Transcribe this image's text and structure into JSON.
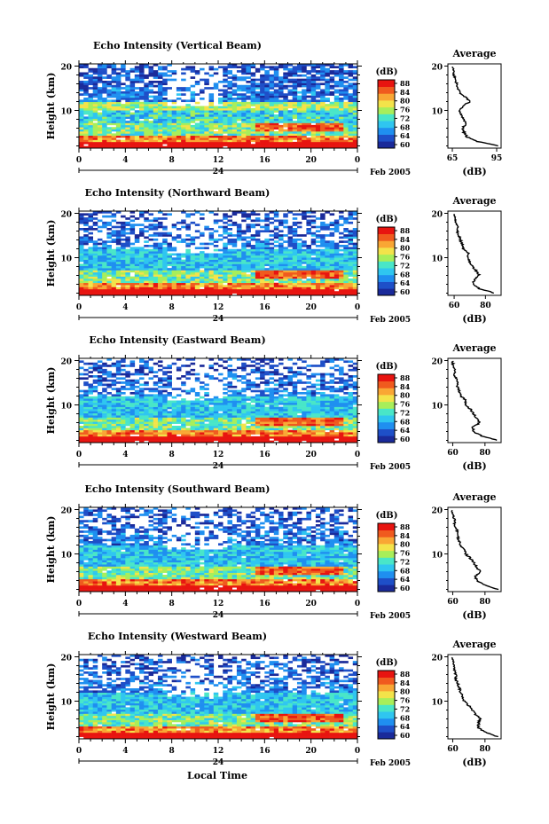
{
  "figure": {
    "xlabel": "Local Time",
    "date_label": "Feb 2005",
    "day_label": "24",
    "colorbar_unit": "(dB)",
    "average_title": "Average",
    "average_xlabel": "(dB)",
    "height_label": "Height (km)"
  },
  "chart_data": [
    {
      "type": "heatmap",
      "title": "Echo Intensity (Vertical Beam)",
      "xlabel": "Local Time",
      "ylabel": "Height (km)",
      "x_ticks": [
        "0",
        "4",
        "8",
        "12",
        "16",
        "20",
        "0"
      ],
      "y_ticks": [
        "20",
        "10"
      ],
      "xlim": [
        0,
        24
      ],
      "ylim": [
        1.5,
        20.5
      ],
      "colorbar": {
        "label": "(dB)",
        "ticks": [
          "88",
          "84",
          "80",
          "76",
          "72",
          "68",
          "64",
          "60"
        ],
        "range": [
          60,
          88
        ]
      },
      "colors": [
        "#1a2a9a",
        "#1e4fc8",
        "#1f8ff0",
        "#2fc6f0",
        "#49e6c8",
        "#a8ee5a",
        "#f3e34a",
        "#f9a634",
        "#f05a1e",
        "#e81410"
      ],
      "average_profile": {
        "title": "Average",
        "xlabel": "(dB)",
        "x_ticks": [
          "65",
          "95"
        ],
        "xlim": [
          62,
          98
        ],
        "heights": [
          2,
          3,
          4,
          5,
          6,
          7,
          8,
          9,
          10,
          11,
          12,
          13,
          14,
          15,
          16,
          17,
          18,
          19,
          20
        ],
        "values": [
          96,
          82,
          75,
          73,
          72,
          74,
          73,
          71,
          70,
          72,
          77,
          74,
          70,
          69,
          68,
          67,
          66,
          66,
          65
        ]
      }
    },
    {
      "type": "heatmap",
      "title": "Echo Intensity (Northward Beam)",
      "xlabel": "Local Time",
      "ylabel": "Height (km)",
      "x_ticks": [
        "0",
        "4",
        "8",
        "12",
        "16",
        "20",
        "0"
      ],
      "y_ticks": [
        "20",
        "10"
      ],
      "xlim": [
        0,
        24
      ],
      "ylim": [
        1.5,
        20.5
      ],
      "colorbar": {
        "label": "(dB)",
        "ticks": [
          "88",
          "84",
          "80",
          "76",
          "72",
          "68",
          "64",
          "60"
        ],
        "range": [
          60,
          88
        ]
      },
      "average_profile": {
        "title": "Average",
        "xlabel": "(dB)",
        "x_ticks": [
          "60",
          "80"
        ],
        "xlim": [
          56,
          90
        ],
        "heights": [
          2,
          3,
          4,
          5,
          6,
          7,
          8,
          9,
          10,
          11,
          12,
          13,
          14,
          15,
          16,
          17,
          18,
          19,
          20
        ],
        "values": [
          86,
          76,
          72,
          73,
          76,
          74,
          72,
          70,
          69,
          69,
          66,
          65,
          64,
          63,
          62,
          62,
          61,
          61,
          60
        ]
      }
    },
    {
      "type": "heatmap",
      "title": "Echo Intensity (Eastward Beam)",
      "xlabel": "Local Time",
      "ylabel": "Height (km)",
      "x_ticks": [
        "0",
        "4",
        "8",
        "12",
        "16",
        "20",
        "0"
      ],
      "y_ticks": [
        "20",
        "10"
      ],
      "xlim": [
        0,
        24
      ],
      "ylim": [
        1.5,
        20.5
      ],
      "colorbar": {
        "label": "(dB)",
        "ticks": [
          "88",
          "84",
          "80",
          "76",
          "72",
          "68",
          "64",
          "60"
        ],
        "range": [
          60,
          88
        ]
      },
      "average_profile": {
        "title": "Average",
        "xlabel": "(dB)",
        "x_ticks": [
          "60",
          "80"
        ],
        "xlim": [
          57,
          90
        ],
        "heights": [
          2,
          3,
          4,
          5,
          6,
          7,
          8,
          9,
          10,
          11,
          12,
          13,
          14,
          15,
          16,
          17,
          18,
          19,
          20
        ],
        "values": [
          88,
          78,
          73,
          72,
          77,
          75,
          73,
          71,
          68,
          68,
          65,
          64,
          63,
          63,
          62,
          61,
          61,
          60,
          60
        ]
      }
    },
    {
      "type": "heatmap",
      "title": "Echo Intensity (Southward Beam)",
      "xlabel": "Local Time",
      "ylabel": "Height (km)",
      "x_ticks": [
        "0",
        "4",
        "8",
        "12",
        "16",
        "20",
        "0"
      ],
      "y_ticks": [
        "20",
        "10"
      ],
      "xlim": [
        0,
        24
      ],
      "ylim": [
        1.5,
        20.5
      ],
      "colorbar": {
        "label": "(dB)",
        "ticks": [
          "88",
          "84",
          "80",
          "76",
          "72",
          "68",
          "64",
          "60"
        ],
        "range": [
          60,
          88
        ]
      },
      "average_profile": {
        "title": "Average",
        "xlabel": "(dB)",
        "x_ticks": [
          "60",
          "80"
        ],
        "xlim": [
          57,
          90
        ],
        "heights": [
          2,
          3,
          4,
          5,
          6,
          7,
          8,
          9,
          10,
          11,
          12,
          13,
          14,
          15,
          16,
          17,
          18,
          19,
          20
        ],
        "values": [
          88,
          80,
          75,
          74,
          77,
          75,
          73,
          71,
          68,
          67,
          65,
          64,
          63,
          63,
          62,
          61,
          61,
          60,
          60
        ]
      }
    },
    {
      "type": "heatmap",
      "title": "Echo Intensity (Westward Beam)",
      "xlabel": "Local Time",
      "ylabel": "Height (km)",
      "x_ticks": [
        "0",
        "4",
        "8",
        "12",
        "16",
        "20",
        "0"
      ],
      "y_ticks": [
        "20",
        "10"
      ],
      "xlim": [
        0,
        24
      ],
      "ylim": [
        1.5,
        20.5
      ],
      "colorbar": {
        "label": "(dB)",
        "ticks": [
          "88",
          "84",
          "80",
          "76",
          "72",
          "68",
          "64",
          "60"
        ],
        "range": [
          60,
          88
        ]
      },
      "average_profile": {
        "title": "Average",
        "xlabel": "(dB)",
        "x_ticks": [
          "60",
          "80"
        ],
        "xlim": [
          57,
          90
        ],
        "heights": [
          2,
          3,
          4,
          5,
          6,
          7,
          8,
          9,
          10,
          11,
          12,
          13,
          14,
          15,
          16,
          17,
          18,
          19,
          20
        ],
        "values": [
          88,
          80,
          76,
          76,
          77,
          74,
          72,
          70,
          67,
          66,
          65,
          64,
          63,
          62,
          62,
          61,
          61,
          60,
          60
        ]
      }
    }
  ]
}
